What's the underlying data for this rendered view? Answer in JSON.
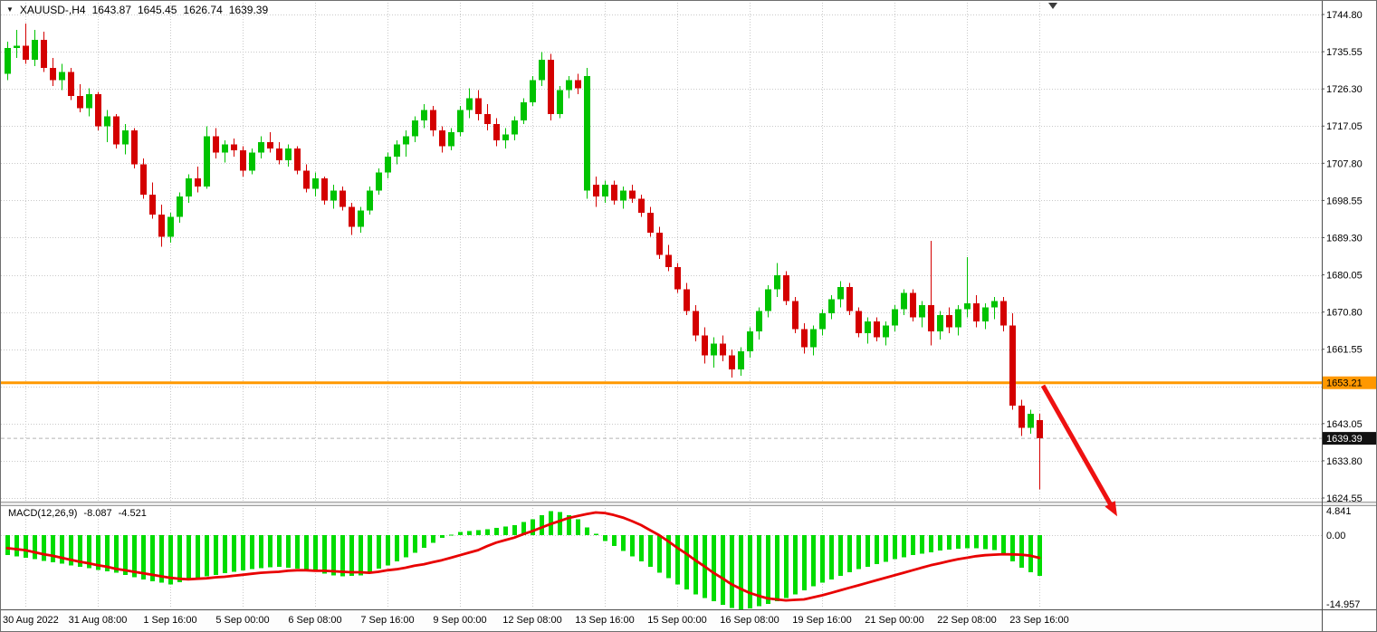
{
  "header": {
    "dropdown_icon": "▼",
    "symbol": "XAUUSD-,H4",
    "open": "1643.87",
    "high": "1645.45",
    "low": "1626.74",
    "close": "1639.39"
  },
  "macd_panel": {
    "label": "MACD(12,26,9)",
    "main_value": "-8.087",
    "signal_value": "-4.521"
  },
  "colors": {
    "bull": "#00C300",
    "bear": "#D40000",
    "macd_bar": "#00DC00",
    "signal": "#E80000",
    "hline": "#FF9800",
    "arrow": "#EE1111",
    "grid": "#C9C9C9",
    "axis_line": "#4D4D4D",
    "axis_text": "#000000",
    "badge_hline_bg": "#FF9800",
    "badge_hline_text": "#000000",
    "badge_price_bg": "#111111",
    "badge_price_text": "#FFFFFF",
    "last_price_line": "#B4B4B4"
  },
  "chart_data": {
    "type": "candlestick",
    "symbol": "XAUUSD-",
    "timeframe": "H4",
    "ohlc_current": [
      1643.87,
      1645.45,
      1626.74,
      1639.39
    ],
    "ylim": [
      1624.55,
      1744.8
    ],
    "y_ticks": [
      1744.8,
      1735.55,
      1726.3,
      1717.05,
      1707.8,
      1698.55,
      1689.3,
      1680.05,
      1670.8,
      1661.55,
      1652.3,
      1643.05,
      1633.8,
      1624.55
    ],
    "hline_price": 1653.21,
    "last_price": 1639.39,
    "arrow": {
      "from_index": 114.4,
      "from_price": 1652.5,
      "to_index": 122.6,
      "to_price": 1620.0
    },
    "x_labels": [
      {
        "index": 2,
        "label": "30 Aug 2022"
      },
      {
        "index": 10,
        "label": "31 Aug 08:00"
      },
      {
        "index": 18,
        "label": "1 Sep 16:00"
      },
      {
        "index": 26,
        "label": "5 Sep 00:00"
      },
      {
        "index": 34,
        "label": "6 Sep 08:00"
      },
      {
        "index": 42,
        "label": "7 Sep 16:00"
      },
      {
        "index": 50,
        "label": "9 Sep 00:00"
      },
      {
        "index": 58,
        "label": "12 Sep 08:00"
      },
      {
        "index": 66,
        "label": "13 Sep 16:00"
      },
      {
        "index": 74,
        "label": "15 Sep 00:00"
      },
      {
        "index": 82,
        "label": "16 Sep 08:00"
      },
      {
        "index": 90,
        "label": "19 Sep 16:00"
      },
      {
        "index": 98,
        "label": "21 Sep 00:00"
      },
      {
        "index": 106,
        "label": "22 Sep 08:00"
      },
      {
        "index": 114,
        "label": "23 Sep 16:00"
      }
    ],
    "candles": [
      [
        1730.0,
        1738.0,
        1728.5,
        1736.5
      ],
      [
        1736.5,
        1741.0,
        1734.0,
        1737.0
      ],
      [
        1737.0,
        1742.5,
        1732.5,
        1733.5
      ],
      [
        1733.5,
        1741.0,
        1732.0,
        1738.5
      ],
      [
        1738.5,
        1740.5,
        1730.5,
        1731.5
      ],
      [
        1731.5,
        1734.0,
        1727.0,
        1728.5
      ],
      [
        1728.5,
        1732.5,
        1726.0,
        1730.5
      ],
      [
        1730.5,
        1731.5,
        1723.5,
        1724.5
      ],
      [
        1724.5,
        1727.5,
        1720.5,
        1721.5
      ],
      [
        1721.5,
        1726.5,
        1719.5,
        1725.0
      ],
      [
        1725.0,
        1725.5,
        1716.0,
        1717.0
      ],
      [
        1717.0,
        1721.0,
        1713.0,
        1719.5
      ],
      [
        1719.5,
        1720.0,
        1711.5,
        1712.5
      ],
      [
        1712.5,
        1717.5,
        1710.0,
        1716.0
      ],
      [
        1716.0,
        1716.5,
        1706.5,
        1707.5
      ],
      [
        1707.5,
        1709.0,
        1699.0,
        1700.0
      ],
      [
        1700.0,
        1703.0,
        1694.0,
        1695.0
      ],
      [
        1695.0,
        1697.5,
        1687.0,
        1689.5
      ],
      [
        1689.5,
        1695.5,
        1688.0,
        1694.5
      ],
      [
        1694.5,
        1700.5,
        1693.0,
        1699.5
      ],
      [
        1699.5,
        1705.0,
        1698.0,
        1704.0
      ],
      [
        1704.0,
        1707.0,
        1700.5,
        1702.0
      ],
      [
        1702.0,
        1717.0,
        1701.5,
        1714.5
      ],
      [
        1714.5,
        1716.5,
        1709.0,
        1710.5
      ],
      [
        1710.5,
        1713.5,
        1708.0,
        1712.5
      ],
      [
        1712.5,
        1714.0,
        1709.5,
        1711.0
      ],
      [
        1711.0,
        1712.0,
        1704.5,
        1706.0
      ],
      [
        1706.0,
        1711.5,
        1705.0,
        1710.5
      ],
      [
        1710.5,
        1714.5,
        1709.0,
        1713.0
      ],
      [
        1713.0,
        1715.5,
        1710.5,
        1711.5
      ],
      [
        1711.5,
        1713.0,
        1707.5,
        1708.5
      ],
      [
        1708.5,
        1712.5,
        1707.0,
        1711.5
      ],
      [
        1711.5,
        1712.0,
        1705.0,
        1706.0
      ],
      [
        1706.0,
        1707.5,
        1700.5,
        1701.5
      ],
      [
        1701.5,
        1705.5,
        1699.5,
        1704.0
      ],
      [
        1704.0,
        1704.5,
        1697.5,
        1698.5
      ],
      [
        1698.5,
        1702.5,
        1696.5,
        1701.0
      ],
      [
        1701.0,
        1702.0,
        1696.0,
        1697.0
      ],
      [
        1697.0,
        1698.0,
        1690.0,
        1692.0
      ],
      [
        1692.0,
        1697.0,
        1690.5,
        1696.0
      ],
      [
        1696.0,
        1702.0,
        1695.0,
        1701.0
      ],
      [
        1701.0,
        1706.5,
        1700.0,
        1705.5
      ],
      [
        1705.5,
        1710.5,
        1704.0,
        1709.5
      ],
      [
        1709.5,
        1713.5,
        1707.5,
        1712.5
      ],
      [
        1712.5,
        1716.0,
        1709.5,
        1714.5
      ],
      [
        1714.5,
        1719.5,
        1713.0,
        1718.5
      ],
      [
        1718.5,
        1722.5,
        1716.5,
        1721.0
      ],
      [
        1721.0,
        1722.0,
        1714.5,
        1716.0
      ],
      [
        1716.0,
        1717.0,
        1710.5,
        1712.0
      ],
      [
        1712.0,
        1716.5,
        1711.0,
        1715.5
      ],
      [
        1715.5,
        1722.0,
        1714.5,
        1721.0
      ],
      [
        1721.0,
        1726.5,
        1719.0,
        1724.0
      ],
      [
        1724.0,
        1726.0,
        1718.5,
        1720.0
      ],
      [
        1720.0,
        1722.5,
        1716.0,
        1717.5
      ],
      [
        1717.5,
        1719.0,
        1712.0,
        1713.5
      ],
      [
        1713.5,
        1716.5,
        1711.5,
        1715.0
      ],
      [
        1715.0,
        1719.5,
        1713.5,
        1718.5
      ],
      [
        1718.5,
        1724.0,
        1717.5,
        1723.0
      ],
      [
        1723.0,
        1729.5,
        1722.0,
        1728.5
      ],
      [
        1728.5,
        1735.5,
        1727.0,
        1733.5
      ],
      [
        1733.5,
        1735.0,
        1718.5,
        1720.0
      ],
      [
        1720.0,
        1727.0,
        1719.0,
        1726.0
      ],
      [
        1726.0,
        1729.5,
        1724.0,
        1728.5
      ],
      [
        1728.5,
        1730.0,
        1725.0,
        1726.5
      ],
      [
        1701.0,
        1731.5,
        1699.0,
        1729.5
      ],
      [
        1702.5,
        1704.5,
        1697.0,
        1699.5
      ],
      [
        1699.5,
        1703.5,
        1698.0,
        1702.5
      ],
      [
        1702.5,
        1703.5,
        1697.5,
        1698.5
      ],
      [
        1698.5,
        1702.0,
        1696.5,
        1701.0
      ],
      [
        1701.0,
        1702.5,
        1698.0,
        1699.0
      ],
      [
        1699.0,
        1700.0,
        1694.5,
        1695.5
      ],
      [
        1695.5,
        1697.0,
        1689.5,
        1690.5
      ],
      [
        1690.5,
        1692.0,
        1684.0,
        1685.0
      ],
      [
        1685.0,
        1687.5,
        1681.0,
        1682.0
      ],
      [
        1682.0,
        1683.0,
        1675.5,
        1676.5
      ],
      [
        1676.5,
        1678.0,
        1670.0,
        1671.0
      ],
      [
        1671.0,
        1672.5,
        1663.5,
        1665.0
      ],
      [
        1665.0,
        1667.0,
        1658.0,
        1660.0
      ],
      [
        1660.0,
        1664.5,
        1657.0,
        1663.0
      ],
      [
        1663.0,
        1665.0,
        1658.5,
        1660.0
      ],
      [
        1660.0,
        1661.5,
        1654.5,
        1656.5
      ],
      [
        1656.5,
        1662.0,
        1655.0,
        1661.0
      ],
      [
        1661.0,
        1667.0,
        1659.5,
        1666.0
      ],
      [
        1666.0,
        1672.0,
        1664.0,
        1671.0
      ],
      [
        1671.0,
        1677.5,
        1669.5,
        1676.5
      ],
      [
        1676.5,
        1683.0,
        1674.5,
        1680.0
      ],
      [
        1680.0,
        1681.0,
        1672.5,
        1673.5
      ],
      [
        1673.5,
        1674.5,
        1665.5,
        1666.5
      ],
      [
        1666.5,
        1668.0,
        1660.5,
        1662.0
      ],
      [
        1662.0,
        1667.5,
        1660.0,
        1666.5
      ],
      [
        1666.5,
        1671.5,
        1665.0,
        1670.5
      ],
      [
        1670.5,
        1675.0,
        1669.0,
        1674.0
      ],
      [
        1674.0,
        1678.5,
        1672.0,
        1677.0
      ],
      [
        1677.0,
        1678.0,
        1670.0,
        1671.0
      ],
      [
        1671.0,
        1672.0,
        1664.5,
        1665.5
      ],
      [
        1665.5,
        1669.5,
        1663.0,
        1668.5
      ],
      [
        1668.5,
        1669.5,
        1663.5,
        1664.5
      ],
      [
        1664.5,
        1668.5,
        1662.5,
        1667.5
      ],
      [
        1667.5,
        1672.5,
        1666.0,
        1671.5
      ],
      [
        1671.5,
        1676.5,
        1670.0,
        1675.5
      ],
      [
        1675.5,
        1676.5,
        1668.5,
        1669.5
      ],
      [
        1669.5,
        1673.5,
        1667.0,
        1672.5
      ],
      [
        1672.5,
        1688.5,
        1662.5,
        1666.0
      ],
      [
        1666.0,
        1671.0,
        1664.0,
        1670.0
      ],
      [
        1670.0,
        1672.0,
        1665.5,
        1667.0
      ],
      [
        1667.0,
        1672.5,
        1665.0,
        1671.5
      ],
      [
        1671.5,
        1684.5,
        1669.5,
        1673.0
      ],
      [
        1673.0,
        1675.0,
        1667.0,
        1668.5
      ],
      [
        1668.5,
        1673.0,
        1666.5,
        1672.0
      ],
      [
        1672.0,
        1674.5,
        1669.0,
        1673.5
      ],
      [
        1673.5,
        1674.5,
        1666.0,
        1667.5
      ],
      [
        1667.5,
        1670.5,
        1646.5,
        1647.5
      ],
      [
        1647.5,
        1649.0,
        1640.0,
        1642.0
      ],
      [
        1642.0,
        1646.5,
        1640.5,
        1645.5
      ],
      [
        1643.87,
        1645.45,
        1626.74,
        1639.39
      ]
    ],
    "macd": {
      "params": "12,26,9",
      "y_ticks": [
        {
          "label": "4.841",
          "value": 4.841
        },
        {
          "label": "0.00",
          "value": 0
        },
        {
          "label": "-14.957",
          "value": -14.957
        }
      ],
      "histogram": [
        -4.0,
        -4.2,
        -4.5,
        -4.8,
        -5.1,
        -5.4,
        -5.7,
        -6.0,
        -6.3,
        -6.6,
        -6.9,
        -7.2,
        -7.5,
        -7.9,
        -8.4,
        -8.8,
        -9.2,
        -9.5,
        -9.8,
        -9.4,
        -9.0,
        -8.6,
        -8.2,
        -7.9,
        -7.6,
        -7.3,
        -7.0,
        -6.8,
        -6.6,
        -6.4,
        -6.3,
        -6.5,
        -6.7,
        -7.0,
        -7.2,
        -7.7,
        -8.0,
        -8.2,
        -8.1,
        -8.0,
        -7.3,
        -6.7,
        -6.0,
        -5.2,
        -4.4,
        -3.5,
        -2.5,
        -1.5,
        -0.5,
        0.1,
        0.6,
        0.8,
        1.0,
        1.2,
        1.4,
        1.7,
        2.0,
        2.6,
        3.2,
        4.0,
        4.8,
        4.6,
        4.0,
        3.2,
        1.5,
        0.3,
        -1.2,
        -2.2,
        -3.2,
        -4.2,
        -5.2,
        -6.3,
        -7.5,
        -8.6,
        -9.8,
        -10.8,
        -11.8,
        -12.5,
        -13.2,
        -13.9,
        -14.5,
        -14.9,
        -14.6,
        -14.2,
        -13.7,
        -13.2,
        -12.5,
        -11.8,
        -11.0,
        -10.2,
        -9.5,
        -8.8,
        -8.1,
        -7.4,
        -6.8,
        -6.3,
        -5.8,
        -5.3,
        -4.8,
        -4.4,
        -4.0,
        -3.7,
        -3.4,
        -3.1,
        -2.9,
        -2.7,
        -2.6,
        -2.6,
        -2.8,
        -3.0,
        -3.8,
        -5.2,
        -6.5,
        -7.4,
        -8.087
      ],
      "signal": [
        -2.6,
        -2.8,
        -3.0,
        -3.4,
        -3.8,
        -4.1,
        -4.5,
        -4.9,
        -5.3,
        -5.6,
        -6.0,
        -6.3,
        -6.7,
        -7.0,
        -7.3,
        -7.6,
        -7.9,
        -8.2,
        -8.5,
        -8.7,
        -8.8,
        -8.7,
        -8.6,
        -8.4,
        -8.3,
        -8.1,
        -7.9,
        -7.7,
        -7.5,
        -7.4,
        -7.3,
        -7.1,
        -7.0,
        -7.0,
        -7.1,
        -7.1,
        -7.2,
        -7.3,
        -7.4,
        -7.4,
        -7.5,
        -7.3,
        -7.0,
        -6.8,
        -6.5,
        -6.1,
        -5.8,
        -5.4,
        -5.0,
        -4.5,
        -4.0,
        -3.5,
        -3.0,
        -2.2,
        -1.5,
        -1.0,
        -0.5,
        0.2,
        0.8,
        1.5,
        2.2,
        2.8,
        3.4,
        3.8,
        4.2,
        4.5,
        4.4,
        4.0,
        3.5,
        2.8,
        2.0,
        1.0,
        0.0,
        -1.2,
        -2.5,
        -3.7,
        -5.0,
        -6.2,
        -7.5,
        -8.6,
        -9.8,
        -10.7,
        -11.5,
        -12.1,
        -12.6,
        -12.8,
        -13.0,
        -12.9,
        -12.8,
        -12.4,
        -12.0,
        -11.5,
        -11.0,
        -10.5,
        -10.0,
        -9.5,
        -9.0,
        -8.5,
        -8.0,
        -7.5,
        -7.0,
        -6.5,
        -6.0,
        -5.6,
        -5.2,
        -4.8,
        -4.5,
        -4.2,
        -4.0,
        -3.9,
        -3.8,
        -3.85,
        -3.9,
        -4.1,
        -4.521
      ]
    }
  }
}
